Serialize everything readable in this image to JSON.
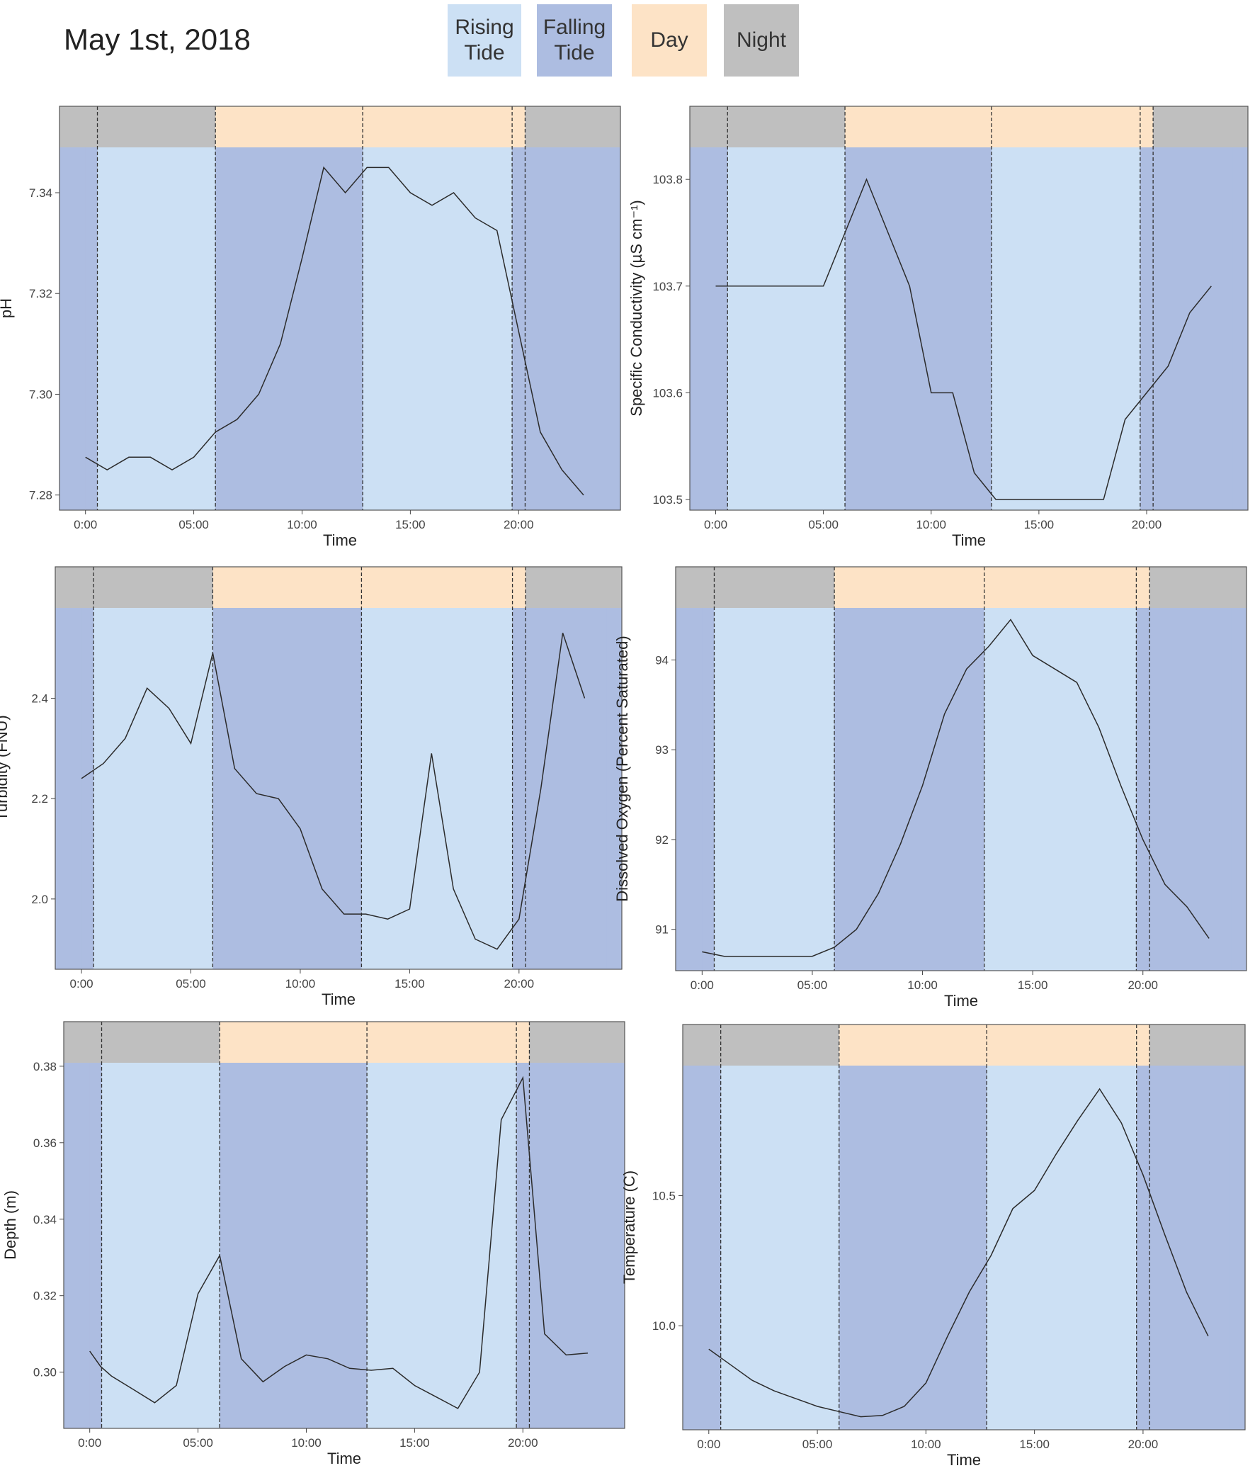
{
  "title": "May 1st, 2018",
  "legend": {
    "items": [
      {
        "label": "Rising\nTide",
        "color": "#cce0f4"
      },
      {
        "label": "Falling\nTide",
        "color": "#adbde1"
      },
      {
        "label": "Day",
        "color": "#fde3c6"
      },
      {
        "label": "Night",
        "color": "#bfbfbf"
      }
    ]
  },
  "colors": {
    "rising": "#cce0f4",
    "falling": "#adbde1",
    "day": "#fde3c6",
    "night": "#bfbfbf",
    "line": "#2b2b2b"
  },
  "periods": {
    "night": [
      [
        0,
        6
      ],
      [
        20.3,
        24
      ]
    ],
    "day": [
      [
        6,
        20.3
      ]
    ],
    "falling_tide": [
      [
        0,
        0.55
      ],
      [
        6,
        12.8
      ],
      [
        19.7,
        24
      ]
    ],
    "rising_tide": [
      [
        0.55,
        6
      ],
      [
        12.8,
        19.7
      ]
    ],
    "event_lines": [
      0.55,
      6,
      12.8,
      19.7,
      20.3
    ]
  },
  "chart_data": [
    {
      "type": "line",
      "xlabel": "Time",
      "ylabel": "pH",
      "xlim": [
        -1.2,
        24.7
      ],
      "ylim": [
        7.277,
        7.349
      ],
      "xticks": [
        0,
        5,
        10,
        15,
        20
      ],
      "xtick_labels": [
        "0:00",
        "05:00",
        "10:00",
        "15:00",
        "20:00"
      ],
      "yticks": [
        7.28,
        7.3,
        7.32,
        7.34
      ],
      "ytick_labels": [
        "7.28",
        "7.30",
        "7.32",
        "7.34"
      ],
      "x": [
        0,
        1,
        2,
        3,
        4,
        5,
        6,
        7,
        8,
        9,
        10,
        11,
        12,
        13,
        14,
        15,
        16,
        17,
        18,
        19,
        20,
        21,
        22,
        23
      ],
      "y": [
        7.2875,
        7.285,
        7.2875,
        7.2875,
        7.285,
        7.2875,
        7.2925,
        7.295,
        7.3,
        7.31,
        7.327,
        7.345,
        7.34,
        7.345,
        7.345,
        7.34,
        7.3375,
        7.34,
        7.335,
        7.3325,
        7.3125,
        7.2925,
        7.285,
        7.28
      ]
    },
    {
      "type": "line",
      "xlabel": "Time",
      "ylabel": "Specific Conductivity (µS cm⁻¹)",
      "xlim": [
        -1.2,
        24.7
      ],
      "ylim": [
        103.49,
        103.83
      ],
      "xticks": [
        0,
        5,
        10,
        15,
        20
      ],
      "xtick_labels": [
        "0:00",
        "05:00",
        "10:00",
        "15:00",
        "20:00"
      ],
      "yticks": [
        103.5,
        103.6,
        103.7,
        103.8
      ],
      "ytick_labels": [
        "103.5",
        "103.6",
        "103.7",
        "103.8"
      ],
      "x": [
        0,
        1,
        2,
        3,
        4,
        5,
        6,
        7,
        8,
        9,
        10,
        11,
        12,
        13,
        14,
        15,
        16,
        17,
        18,
        19,
        20,
        21,
        22,
        23
      ],
      "y": [
        103.7,
        103.7,
        103.7,
        103.7,
        103.7,
        103.7,
        103.75,
        103.8,
        103.75,
        103.7,
        103.6,
        103.6,
        103.525,
        103.5,
        103.5,
        103.5,
        103.5,
        103.5,
        103.5,
        103.575,
        103.6,
        103.625,
        103.675,
        103.7
      ]
    },
    {
      "type": "line",
      "xlabel": "Time",
      "ylabel": "Turbidity (FNU)",
      "xlim": [
        -1.2,
        24.7
      ],
      "ylim": [
        1.86,
        2.58
      ],
      "xticks": [
        0,
        5,
        10,
        15,
        20
      ],
      "xtick_labels": [
        "0:00",
        "05:00",
        "10:00",
        "15:00",
        "20:00"
      ],
      "yticks": [
        2.0,
        2.2,
        2.4
      ],
      "ytick_labels": [
        "2.0",
        "2.2",
        "2.4"
      ],
      "x": [
        0,
        1,
        2,
        3,
        4,
        5,
        6,
        7,
        8,
        9,
        10,
        11,
        12,
        13,
        14,
        15,
        16,
        17,
        18,
        19,
        20,
        21,
        22,
        23
      ],
      "y": [
        2.24,
        2.27,
        2.32,
        2.42,
        2.38,
        2.31,
        2.49,
        2.26,
        2.21,
        2.2,
        2.14,
        2.02,
        1.97,
        1.97,
        1.96,
        1.98,
        2.29,
        2.02,
        1.92,
        1.9,
        1.96,
        2.22,
        2.53,
        2.4
      ]
    },
    {
      "type": "line",
      "xlabel": "Time",
      "ylabel": "Dissolved Oxygen (Percent Saturated)",
      "xlim": [
        -1.2,
        24.7
      ],
      "ylim": [
        90.54,
        94.58
      ],
      "xticks": [
        0,
        5,
        10,
        15,
        20
      ],
      "xtick_labels": [
        "0:00",
        "05:00",
        "10:00",
        "15:00",
        "20:00"
      ],
      "yticks": [
        91,
        92,
        93,
        94
      ],
      "ytick_labels": [
        "91",
        "92",
        "93",
        "94"
      ],
      "x": [
        0,
        1,
        2,
        3,
        4,
        5,
        6,
        7,
        8,
        9,
        10,
        11,
        12,
        13,
        14,
        15,
        16,
        17,
        18,
        19,
        20,
        21,
        22,
        23
      ],
      "y": [
        90.75,
        90.7,
        90.7,
        90.7,
        90.7,
        90.7,
        90.8,
        91.0,
        91.4,
        91.95,
        92.6,
        93.4,
        93.9,
        94.15,
        94.45,
        94.05,
        93.9,
        93.75,
        93.25,
        92.6,
        92.0,
        91.5,
        91.25,
        90.9
      ]
    },
    {
      "type": "line",
      "xlabel": "Time",
      "ylabel": "Depth (m)",
      "xlim": [
        -1.2,
        24.7
      ],
      "ylim": [
        0.2853,
        0.3809
      ],
      "xticks": [
        0,
        5,
        10,
        15,
        20
      ],
      "xtick_labels": [
        "0:00",
        "05:00",
        "10:00",
        "15:00",
        "20:00"
      ],
      "yticks": [
        0.3,
        0.32,
        0.34,
        0.36,
        0.38
      ],
      "ytick_labels": [
        "0.30",
        "0.32",
        "0.34",
        "0.36",
        "0.38"
      ],
      "x": [
        0,
        0.5,
        1,
        2,
        3,
        4,
        5,
        6,
        7,
        8,
        9,
        10,
        11,
        12,
        13,
        14,
        15,
        16,
        17,
        18,
        19,
        20,
        21,
        22,
        23
      ],
      "y": [
        0.3055,
        0.3015,
        0.299,
        0.2955,
        0.292,
        0.2965,
        0.3205,
        0.3305,
        0.3035,
        0.2975,
        0.3015,
        0.3045,
        0.3035,
        0.301,
        0.3005,
        0.301,
        0.2965,
        0.2935,
        0.2905,
        0.3,
        0.366,
        0.377,
        0.31,
        0.3045,
        0.305
      ]
    },
    {
      "type": "line",
      "xlabel": "Time",
      "ylabel": "Temperature (C)",
      "xlim": [
        -1.2,
        24.7
      ],
      "ylim": [
        9.6,
        11.0
      ],
      "xticks": [
        0,
        5,
        10,
        15,
        20
      ],
      "xtick_labels": [
        "0:00",
        "05:00",
        "10:00",
        "15:00",
        "20:00"
      ],
      "yticks": [
        10.0,
        10.5
      ],
      "ytick_labels": [
        "10.0",
        "10.5"
      ],
      "x": [
        0,
        1,
        2,
        3,
        4,
        5,
        6,
        7,
        8,
        9,
        10,
        11,
        12,
        13,
        14,
        15,
        16,
        17,
        18,
        19,
        20,
        21,
        22,
        23
      ],
      "y": [
        9.91,
        9.85,
        9.79,
        9.75,
        9.72,
        9.69,
        9.67,
        9.65,
        9.655,
        9.69,
        9.78,
        9.96,
        10.13,
        10.27,
        10.45,
        10.52,
        10.66,
        10.79,
        10.91,
        10.78,
        10.58,
        10.35,
        10.13,
        9.96
      ]
    }
  ]
}
